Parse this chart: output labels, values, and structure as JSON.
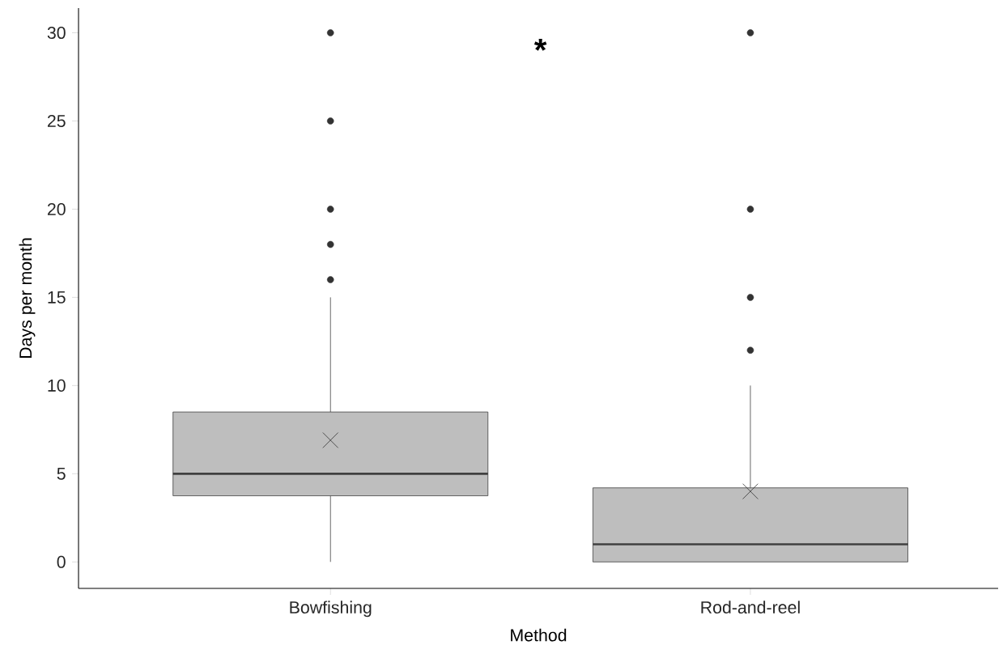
{
  "chart_data": {
    "type": "box",
    "xlabel": "Method",
    "ylabel": "Days per month",
    "categories": [
      "Bowfishing",
      "Rod-and-reel"
    ],
    "boxes": [
      {
        "low": 0,
        "q1": 3.75,
        "median": 5,
        "q3": 8.5,
        "high": 15,
        "mean": 6.9,
        "outliers": [
          16,
          18,
          20,
          25,
          30
        ]
      },
      {
        "low": 0,
        "q1": 0,
        "median": 1,
        "q3": 4.2,
        "high": 10,
        "mean": 4,
        "outliers": [
          12,
          15,
          20,
          30
        ]
      }
    ],
    "color": "#bebebe",
    "ylim": [
      -1.5,
      31.4
    ],
    "yticks": [
      0,
      5,
      10,
      15,
      20,
      25,
      30
    ],
    "grid": false,
    "annotations": [
      "*"
    ]
  }
}
